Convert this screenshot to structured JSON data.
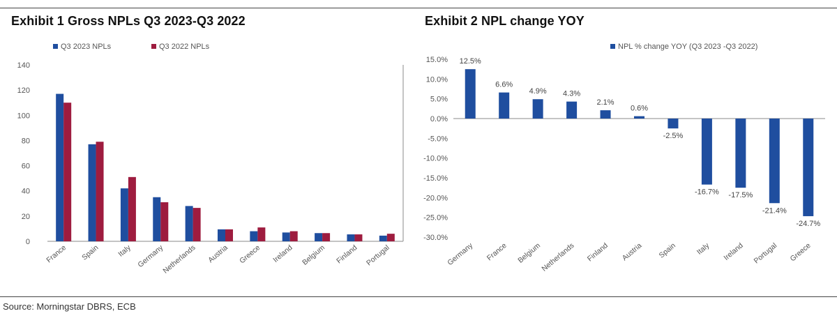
{
  "exhibit1": {
    "title": "Exhibit 1 Gross NPLs Q3 2023-Q3 2022"
  },
  "exhibit2": {
    "title": "Exhibit 2 NPL change YOY"
  },
  "source": "Source: Morningstar DBRS, ECB",
  "colors": {
    "navy": "#1F4E9F",
    "crimson": "#9E1C3F",
    "axis": "#888888",
    "grid": "#d9d9d9"
  },
  "chart_data": [
    {
      "type": "bar",
      "title": "Exhibit 1 Gross NPLs Q3 2023-Q3 2022",
      "categories": [
        "France",
        "Spain",
        "Italy",
        "Germany",
        "Netherlands",
        "Austria",
        "Greece",
        "Ireland",
        "Belgium",
        "Finland",
        "Portugal"
      ],
      "series": [
        {
          "name": "Q3 2023 NPLs",
          "color": "#1F4E9F",
          "values": [
            117,
            77,
            42,
            35,
            28,
            9.5,
            8,
            7,
            6.5,
            5.5,
            4.5
          ]
        },
        {
          "name": "Q3 2022 NPLs",
          "color": "#9E1C3F",
          "values": [
            110,
            79,
            51,
            31,
            26.5,
            9.5,
            11,
            8,
            6.5,
            5.5,
            6
          ]
        }
      ],
      "ylim": [
        0,
        140
      ],
      "yticks": [
        "0",
        "20",
        "40",
        "60",
        "80",
        "100",
        "120",
        "140"
      ],
      "grid": false,
      "legend": "top-left"
    },
    {
      "type": "bar",
      "title": "Exhibit 2 NPL change YOY",
      "categories": [
        "Germany",
        "France",
        "Belgium",
        "Netherlands",
        "Finland",
        "Austria",
        "Spain",
        "Italy",
        "Ireland",
        "Portugal",
        "Greece"
      ],
      "series": [
        {
          "name": "NPL % change YOY (Q3 2023 -Q3 2022)",
          "color": "#1F4E9F",
          "values": [
            12.5,
            6.6,
            4.9,
            4.3,
            2.1,
            0.6,
            -2.5,
            -16.7,
            -17.5,
            -21.4,
            -24.7
          ],
          "labels": [
            "12.5%",
            "6.6%",
            "4.9%",
            "4.3%",
            "2.1%",
            "0.6%",
            "-2.5%",
            "-16.7%",
            "-17.5%",
            "-21.4%",
            "-24.7%"
          ]
        }
      ],
      "ylim": [
        -30,
        15
      ],
      "yticks": [
        "15.0%",
        "10.0%",
        "5.0%",
        "0.0%",
        "-5.0%",
        "-10.0%",
        "-15.0%",
        "-20.0%",
        "-25.0%",
        "-30.0%"
      ],
      "grid": false,
      "legend": "top-center"
    }
  ]
}
